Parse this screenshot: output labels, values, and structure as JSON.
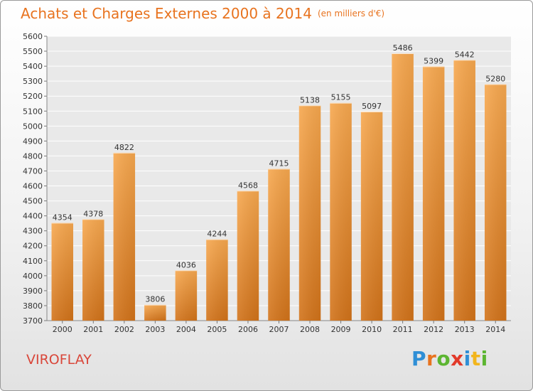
{
  "chart_data": {
    "type": "bar",
    "title": "Achats et Charges Externes 2000 à 2014",
    "subtitle": "(en milliers d'€)",
    "categories": [
      "2000",
      "2001",
      "2002",
      "2003",
      "2004",
      "2005",
      "2006",
      "2007",
      "2008",
      "2009",
      "2010",
      "2011",
      "2012",
      "2013",
      "2014"
    ],
    "values": [
      4354,
      4378,
      4822,
      3806,
      4036,
      4244,
      4568,
      4715,
      5138,
      5155,
      5097,
      5486,
      5399,
      5442,
      5280
    ],
    "ylim": [
      3700,
      5600
    ],
    "ytick_step": 100,
    "grid": true,
    "bar_color_top": "#f7a84f",
    "bar_color_bottom": "#d2731a"
  },
  "footer": {
    "city": "VIROFLAY",
    "logo_letters": [
      "P",
      "r",
      "o",
      "x",
      "i",
      "t",
      "i"
    ],
    "logo_colors": [
      "#2f8fd6",
      "#e8731f",
      "#5cb531",
      "#e23a2a",
      "#2f8fd6",
      "#f2b51c",
      "#5cb531"
    ]
  }
}
